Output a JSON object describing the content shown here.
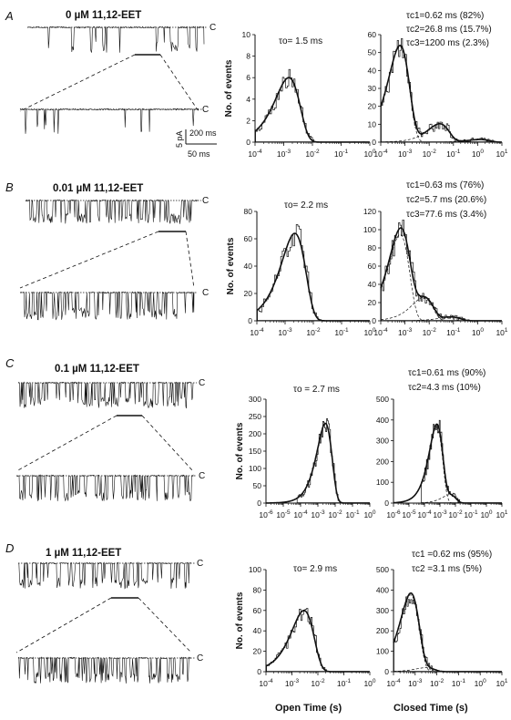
{
  "figure": {
    "x_label_open": "Open Time (s)",
    "x_label_closed": "Closed Time (s)",
    "scale_bar": {
      "current": "5 pA",
      "time_long": "200 ms",
      "time_short": "50 ms"
    },
    "closed_marker": "C"
  },
  "panels": [
    {
      "letter": "A",
      "condition": "0 µM 11,12-EET",
      "open_tau": "τo= 1.5 ms",
      "closed_taus": [
        "τc1=0.62 ms (82%)",
        "τc2=26.8 ms (15.7%)",
        "τc3=1200 ms (2.3%)"
      ]
    },
    {
      "letter": "B",
      "condition": "0.01 µM 11,12-EET",
      "open_tau": "τo= 2.2 ms",
      "closed_taus": [
        "τc1=0.63 ms (76%)",
        "τc2=5.7 ms (20.6%)",
        "τc3=77.6 ms (3.4%)"
      ]
    },
    {
      "letter": "C",
      "condition": "0.1 µM 11,12-EET",
      "open_tau": "τo = 2.7 ms",
      "closed_taus": [
        "τc1=0.61 ms (90%)",
        "τc2=4.3 ms (10%)"
      ]
    },
    {
      "letter": "D",
      "condition": "1 µM 11,12-EET",
      "open_tau": "τo= 2.9 ms",
      "closed_taus": [
        "τc1 =0.62 ms (95%)",
        "τc2 =3.1 ms (5%)"
      ]
    }
  ],
  "chart_data": [
    {
      "panel": "A",
      "type": "histogram",
      "xlabel": "Open Time (s)",
      "ylabel": "No. of events",
      "x_scale": "log",
      "xlim": [
        0.0001,
        1
      ],
      "ylim": [
        0,
        10
      ],
      "yticks": [
        0,
        2,
        4,
        6,
        8,
        10
      ],
      "xticks": [
        "10-4",
        "10-3",
        "10-2",
        "10-1",
        "100"
      ],
      "fit_tau_ms": [
        1.5
      ],
      "fit_weight": [
        1.0
      ],
      "peak": 6
    },
    {
      "panel": "A",
      "type": "histogram",
      "xlabel": "",
      "ylabel": "",
      "x_scale": "log",
      "xlim": [
        0.0001,
        10
      ],
      "ylim": [
        0,
        60
      ],
      "yticks": [
        0,
        10,
        20,
        30,
        40,
        50,
        60
      ],
      "xticks": [
        "10-4",
        "10-3",
        "10-2",
        "10-1",
        "100",
        "101"
      ],
      "fit_tau_ms": [
        0.62,
        26.8,
        1200
      ],
      "fit_weight": [
        0.82,
        0.157,
        0.023
      ],
      "peak": 54
    },
    {
      "panel": "B",
      "type": "histogram",
      "xlabel": "",
      "ylabel": "No. of events",
      "x_scale": "log",
      "xlim": [
        0.0001,
        1
      ],
      "ylim": [
        0,
        80
      ],
      "yticks": [
        0,
        20,
        40,
        60,
        80
      ],
      "xticks": [
        "10-4",
        "10-3",
        "10-2",
        "10-1",
        "100"
      ],
      "fit_tau_ms": [
        2.2
      ],
      "fit_weight": [
        1.0
      ],
      "peak": 64
    },
    {
      "panel": "B",
      "type": "histogram",
      "xlabel": "",
      "ylabel": "",
      "x_scale": "log",
      "xlim": [
        0.0001,
        10
      ],
      "ylim": [
        0,
        120
      ],
      "yticks": [
        0,
        20,
        40,
        60,
        80,
        100,
        120
      ],
      "xticks": [
        "10-4",
        "10-3",
        "10-2",
        "10-1",
        "100",
        "101"
      ],
      "fit_tau_ms": [
        0.63,
        5.7,
        77.6
      ],
      "fit_weight": [
        0.76,
        0.206,
        0.034
      ],
      "peak": 102
    },
    {
      "panel": "C",
      "type": "histogram",
      "xlabel": "",
      "ylabel": "No. of events",
      "x_scale": "log",
      "xlim": [
        1e-06,
        1
      ],
      "ylim": [
        0,
        300
      ],
      "yticks": [
        0,
        50,
        100,
        150,
        200,
        250,
        300
      ],
      "xticks": [
        "10-6",
        "10-5",
        "10-4",
        "10-3",
        "10-2",
        "10-1",
        "100"
      ],
      "fit_tau_ms": [
        2.7
      ],
      "fit_weight": [
        1.0
      ],
      "peak": 230
    },
    {
      "panel": "C",
      "type": "histogram",
      "xlabel": "",
      "ylabel": "",
      "x_scale": "log",
      "xlim": [
        1e-06,
        10
      ],
      "ylim": [
        0,
        500
      ],
      "yticks": [
        0,
        100,
        200,
        300,
        400,
        500
      ],
      "xticks": [
        "10-6",
        "10-5",
        "10-4",
        "10-3",
        "10-2",
        "10-1",
        "100",
        "101"
      ],
      "fit_tau_ms": [
        0.61,
        4.3
      ],
      "fit_weight": [
        0.9,
        0.1
      ],
      "peak": 380
    },
    {
      "panel": "D",
      "type": "histogram",
      "xlabel": "Open Time (s)",
      "ylabel": "No. of events",
      "x_scale": "log",
      "xlim": [
        0.0001,
        1
      ],
      "ylim": [
        0,
        100
      ],
      "yticks": [
        0,
        20,
        40,
        60,
        80,
        100
      ],
      "xticks": [
        "10-4",
        "10-3",
        "10-2",
        "10-1",
        "100"
      ],
      "fit_tau_ms": [
        2.9
      ],
      "fit_weight": [
        1.0
      ],
      "peak": 60
    },
    {
      "panel": "D",
      "type": "histogram",
      "xlabel": "Closed Time (s)",
      "ylabel": "",
      "x_scale": "log",
      "xlim": [
        0.0001,
        10
      ],
      "ylim": [
        0,
        500
      ],
      "yticks": [
        0,
        100,
        200,
        300,
        400,
        500
      ],
      "xticks": [
        "10-4",
        "10-3",
        "10-2",
        "10-1",
        "100",
        "101"
      ],
      "fit_tau_ms": [
        0.62,
        3.1
      ],
      "fit_weight": [
        0.95,
        0.05
      ],
      "peak": 385
    }
  ]
}
